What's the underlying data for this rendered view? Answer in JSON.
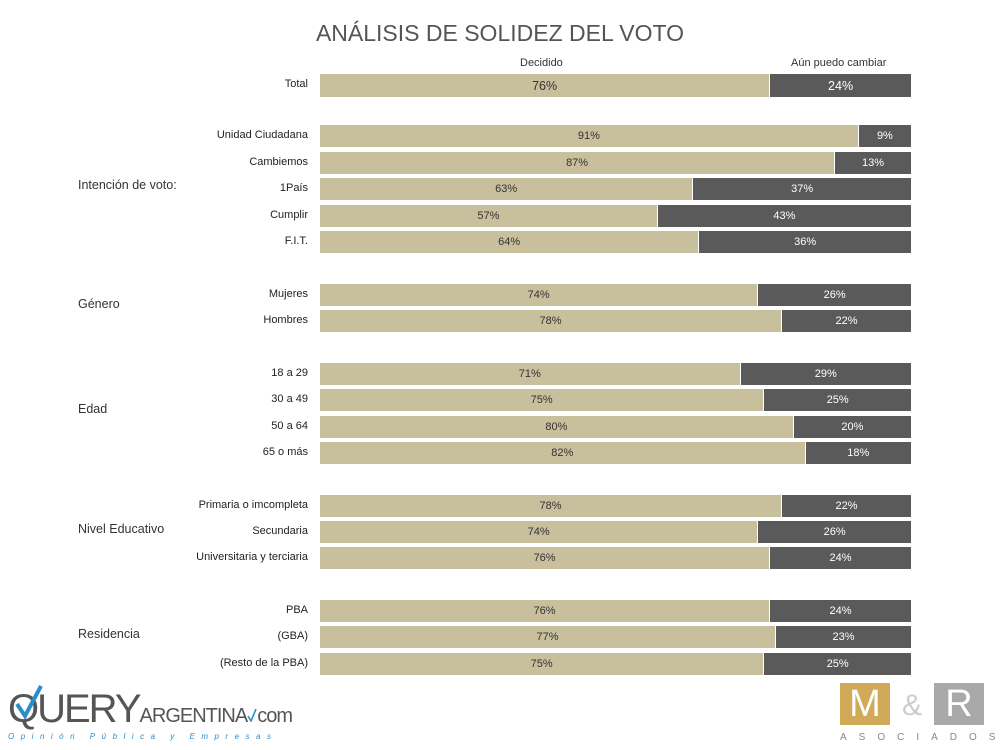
{
  "chart_data": {
    "type": "bar",
    "orientation": "horizontal",
    "stacked": true,
    "percent_stacked": true,
    "title": "ANÁLISIS DE SOLIDEZ DEL VOTO",
    "series": [
      {
        "name": "Decidido",
        "color": "#c8bf9c"
      },
      {
        "name": "Aún puedo cambiar",
        "color": "#5a5a5a"
      }
    ],
    "groups": [
      {
        "label": "",
        "rows": [
          {
            "category": "Total",
            "values": [
              76,
              24
            ]
          }
        ]
      },
      {
        "label": "Intención de voto:",
        "rows": [
          {
            "category": "Unidad Ciudadana",
            "values": [
              91,
              9
            ]
          },
          {
            "category": "Cambiemos",
            "values": [
              87,
              13
            ]
          },
          {
            "category": "1País",
            "values": [
              63,
              37
            ]
          },
          {
            "category": "Cumplir",
            "values": [
              57,
              43
            ]
          },
          {
            "category": "F.I.T.",
            "values": [
              64,
              36
            ]
          }
        ]
      },
      {
        "label": "Género",
        "rows": [
          {
            "category": "Mujeres",
            "values": [
              74,
              26
            ]
          },
          {
            "category": "Hombres",
            "values": [
              78,
              22
            ]
          }
        ]
      },
      {
        "label": "Edad",
        "rows": [
          {
            "category": "18 a 29",
            "values": [
              71,
              29
            ]
          },
          {
            "category": "30 a 49",
            "values": [
              75,
              25
            ]
          },
          {
            "category": "50 a 64",
            "values": [
              80,
              20
            ]
          },
          {
            "category": "65 o más",
            "values": [
              82,
              18
            ]
          }
        ]
      },
      {
        "label": "Nivel Educativo",
        "rows": [
          {
            "category": "Primaria o imcompleta",
            "values": [
              78,
              22
            ]
          },
          {
            "category": "Secundaria",
            "values": [
              74,
              26
            ]
          },
          {
            "category": "Universitaria y terciaria",
            "values": [
              76,
              24
            ]
          }
        ]
      },
      {
        "label": "Residencia",
        "rows": [
          {
            "category": "PBA",
            "values": [
              76,
              24
            ]
          },
          {
            "category": "(GBA)",
            "values": [
              77,
              23
            ]
          },
          {
            "category": "(Resto de la PBA)",
            "values": [
              75,
              25
            ]
          }
        ]
      }
    ]
  },
  "logos": {
    "query": {
      "text": "QUERYARGENTINA.com",
      "tagline": "Opinión Pública y Empresas"
    },
    "mr": {
      "text": "M&R",
      "sub": "ASOCIADOS"
    }
  }
}
